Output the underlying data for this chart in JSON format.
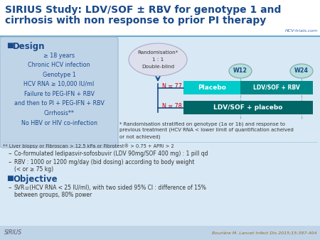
{
  "title_line1": "SIRIUS Study: LDV/SOF ± RBV for genotype 1 and",
  "title_line2": "cirrhosis with non response to prior PI therapy",
  "title_color": "#1a4a8a",
  "title_fontsize": 10.0,
  "bg_color": "#d8e8f4",
  "design_box_bg": "#c0d4e8",
  "design_title": "Design",
  "design_title_color": "#1a4a8a",
  "design_bullet_color": "#1a4a8a",
  "design_text": [
    "≥ 18 years",
    "Chronic HCV infection",
    "Genotype 1",
    "HCV RNA ≥ 10,000 IU/ml",
    "Failure to PEG-IFN + RBV",
    "and then to PI + PEG-IFN + RBV",
    "Cirrhosis**",
    "No HBV or HIV co-infection"
  ],
  "design_text_color": "#1a4a8a",
  "n77_color": "#cc0000",
  "n78_color": "#cc0000",
  "placebo_bar_color": "#00cccc",
  "ldv_sof_rbv_bar_color": "#008888",
  "ldv_sof_placebo_bar_color": "#006666",
  "w_circle_color": "#b8dede",
  "w_border_color": "#77aaaa",
  "w_text_color": "#1a4a8a",
  "arrow_color": "#1a4a8a",
  "dashed_color": "#88bbbb",
  "footnote1": "* Randomisation stratified on genotype (1a or 1b) and response to",
  "footnote2": "previous treatment (HCV RNA < lower limit of quantification acheived",
  "footnote3": "or not achieved)",
  "footnote4": "** Liver biopsy or Fibroscan > 12.5 kPa or Fibrotest® > 0.75 + APRI > 2",
  "footnote_color": "#333333",
  "bullet_text_color": "#333333",
  "bullet1": "Co-formulated ledipasvir-sofosbuvir (LDV 90mg/SOF 400 mg) : 1 pill qd",
  "bullet2a": "RBV : 1000 or 1200 mg/day (bid dosing) according to body weight",
  "bullet2b": "(< or ≥ 75 kg)",
  "objective_title": "Objective",
  "obj_text1": " (HCV RNA < 25 IU/ml), with two sided 95% CI : difference of 15%",
  "obj_text2": "between groups, 80% power",
  "reference": "Bourière M. Lancet Infect Dis 2015;15:397-404",
  "sirius_label": "SIRIUS",
  "logo_text": "HCV-trials.com",
  "sep_color": "#aaccdd",
  "white": "#ffffff",
  "rand_bg": "#dde0ec",
  "rand_border": "#aaaacc"
}
